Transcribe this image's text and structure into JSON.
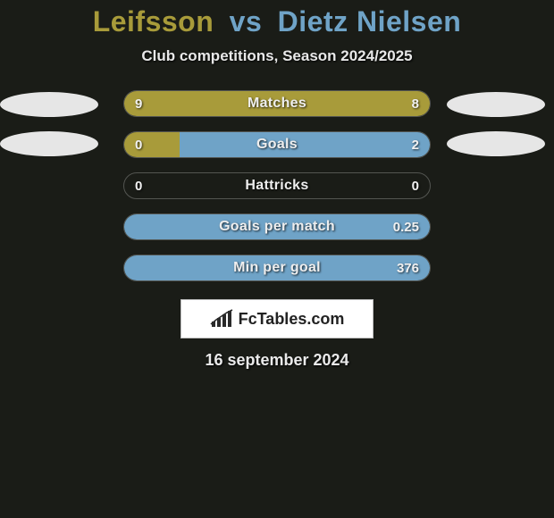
{
  "title": {
    "player1": "Leifsson",
    "vs": "vs",
    "player2": "Dietz Nielsen",
    "p1_color": "#a89b3a",
    "vs_color": "#6fa3c7",
    "p2_color": "#6fa3c7",
    "fontsize": 32
  },
  "subtitle": {
    "text": "Club competitions, Season 2024/2025",
    "color": "#e8e8e8",
    "fontsize": 17
  },
  "background_color": "#1a1c17",
  "avatar": {
    "color": "#e6e6e6",
    "width": 110,
    "height": 28
  },
  "bars": {
    "height": 30,
    "radius": 15,
    "gap": 16,
    "border_color": "rgba(255,255,255,0.25)",
    "left_fill_color": "#a89b3a",
    "right_fill_color": "#6fa3c7",
    "label_color": "#eeeeee",
    "value_color": "#f1f1f1",
    "label_fontsize": 16,
    "value_fontsize": 15,
    "items": [
      {
        "label": "Matches",
        "left_val": "9",
        "right_val": "8",
        "left_pct": 100,
        "right_pct": 0
      },
      {
        "label": "Goals",
        "left_val": "0",
        "right_val": "2",
        "left_pct": 18,
        "right_pct": 82
      },
      {
        "label": "Hattricks",
        "left_val": "0",
        "right_val": "0",
        "left_pct": 0,
        "right_pct": 0
      },
      {
        "label": "Goals per match",
        "left_val": "",
        "right_val": "0.25",
        "left_pct": 0,
        "right_pct": 100
      },
      {
        "label": "Min per goal",
        "left_val": "",
        "right_val": "376",
        "left_pct": 0,
        "right_pct": 100
      }
    ]
  },
  "logo": {
    "text": "FcTables.com",
    "text_color": "#222222",
    "bg_color": "#ffffff",
    "border_color": "#bcbcbc",
    "icon_color": "#2a2a2a"
  },
  "date": {
    "text": "16 september 2024",
    "color": "#eaeaea",
    "fontsize": 18
  }
}
